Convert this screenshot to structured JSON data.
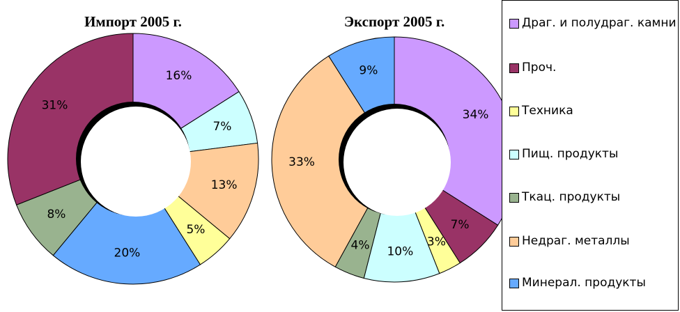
{
  "chart_data": [
    {
      "type": "donut",
      "title": "Импорт 2005 г.",
      "categories": [
        "Драг. и полудраг. камни",
        "Пищ. продукты",
        "Недраг. металлы",
        "Техника",
        "Минерал. продукты",
        "Ткац. продукты",
        "Проч."
      ],
      "values": [
        16,
        7,
        13,
        5,
        20,
        8,
        31
      ],
      "value_labels": [
        "16%",
        "7%",
        "13%",
        "5%",
        "20%",
        "8%",
        "31%"
      ],
      "colors": [
        "#cc99ff",
        "#ccffff",
        "#ffcc99",
        "#ffff99",
        "#66aaff",
        "#99b38f",
        "#993366"
      ]
    },
    {
      "type": "donut",
      "title": "Экспорт 2005 г.",
      "categories": [
        "Драг. и полудраг. камни",
        "Проч.",
        "Техника",
        "Пищ. продукты",
        "Ткац. продукты",
        "Недраг. металлы",
        "Минерал. продукты"
      ],
      "values": [
        34,
        7,
        3,
        10,
        4,
        33,
        9
      ],
      "value_labels": [
        "34%",
        "7%",
        "3%",
        "10%",
        "4%",
        "33%",
        "9%"
      ],
      "colors": [
        "#cc99ff",
        "#993366",
        "#ffff99",
        "#ccffff",
        "#99b38f",
        "#ffcc99",
        "#66aaff"
      ]
    }
  ],
  "legend": {
    "labels": [
      "Драг. и полудраг. камни",
      "Проч.",
      "Техника",
      "Пищ. продукты",
      "Ткац. продукты",
      "Недраг. металлы",
      "Минерал. продукты"
    ],
    "colors": [
      "#cc99ff",
      "#993366",
      "#ffff99",
      "#ccffff",
      "#99b38f",
      "#ffcc99",
      "#66aaff"
    ],
    "position": "right"
  }
}
